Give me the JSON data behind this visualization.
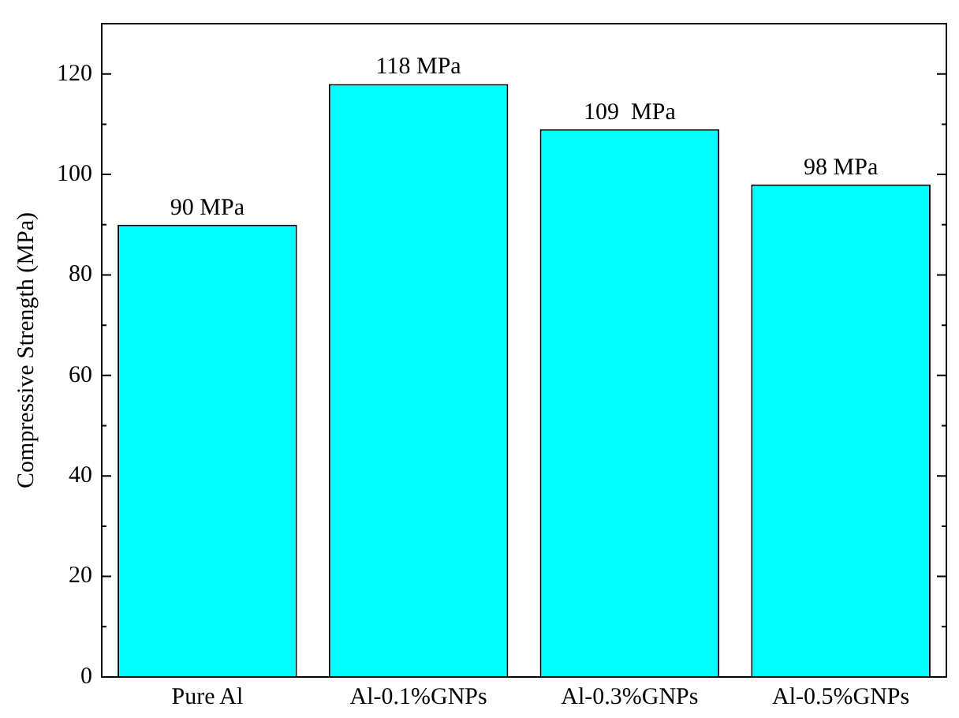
{
  "chart_data": {
    "type": "bar",
    "ylabel": "Compressive Strength (MPa)",
    "categories": [
      "Pure Al",
      "Al-0.1%GNPs",
      "Al-0.3%GNPs",
      "Al-0.5%GNPs"
    ],
    "values": [
      90,
      118,
      109,
      98
    ],
    "value_labels": [
      "90 MPa",
      "118 MPa",
      "109  MPa",
      "98 MPa"
    ],
    "color": "#00ffff",
    "ylim": [
      0,
      130
    ],
    "yticks": [
      0,
      {
        "value": 10,
        "label": null
      },
      20,
      {
        "value": 30,
        "label": null
      },
      40,
      {
        "value": 50,
        "label": null
      },
      60,
      {
        "value": 70,
        "label": null
      },
      80,
      {
        "value": 90,
        "label": null
      },
      100,
      {
        "value": 110,
        "label": null
      },
      120
    ],
    "grid": false,
    "legend": false
  }
}
